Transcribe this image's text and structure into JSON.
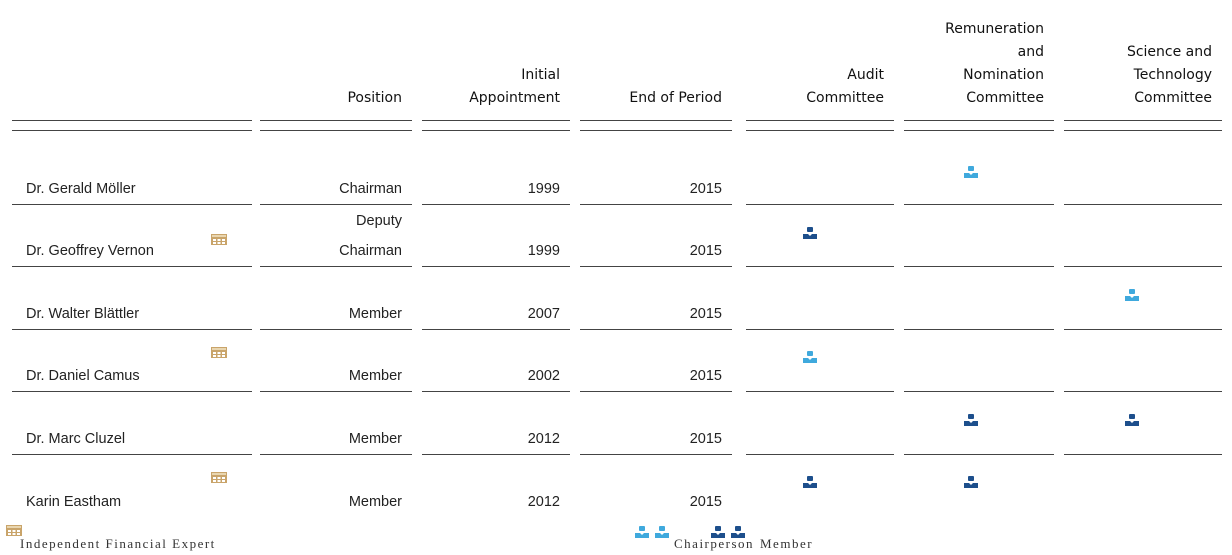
{
  "table": {
    "header": [
      "",
      "Position",
      "Initial\nAppointment",
      "End of Period",
      "Audit\nCommittee",
      "Remuneration\nand\nNomination\nCommittee",
      "Science and\nTechnology\nCommittee"
    ],
    "rows": [
      [
        "Dr. Gerald Möller",
        "Chairman",
        1999,
        2015
      ],
      [
        "Dr. Geoffrey Vernon",
        "Deputy\nChairman",
        1999,
        2015
      ],
      [
        "Dr. Walter Blättler",
        "Member",
        2007,
        2015
      ],
      [
        "Dr. Daniel Camus",
        "Member",
        2002,
        2015
      ],
      [
        "Dr. Marc Cluzel",
        "Member",
        2012,
        2015
      ],
      [
        "Karin Eastham",
        "Member",
        2012,
        2015
      ]
    ]
  },
  "legend": [
    "Independent Financial Expert",
    "Chairperson",
    "Member"
  ]
}
